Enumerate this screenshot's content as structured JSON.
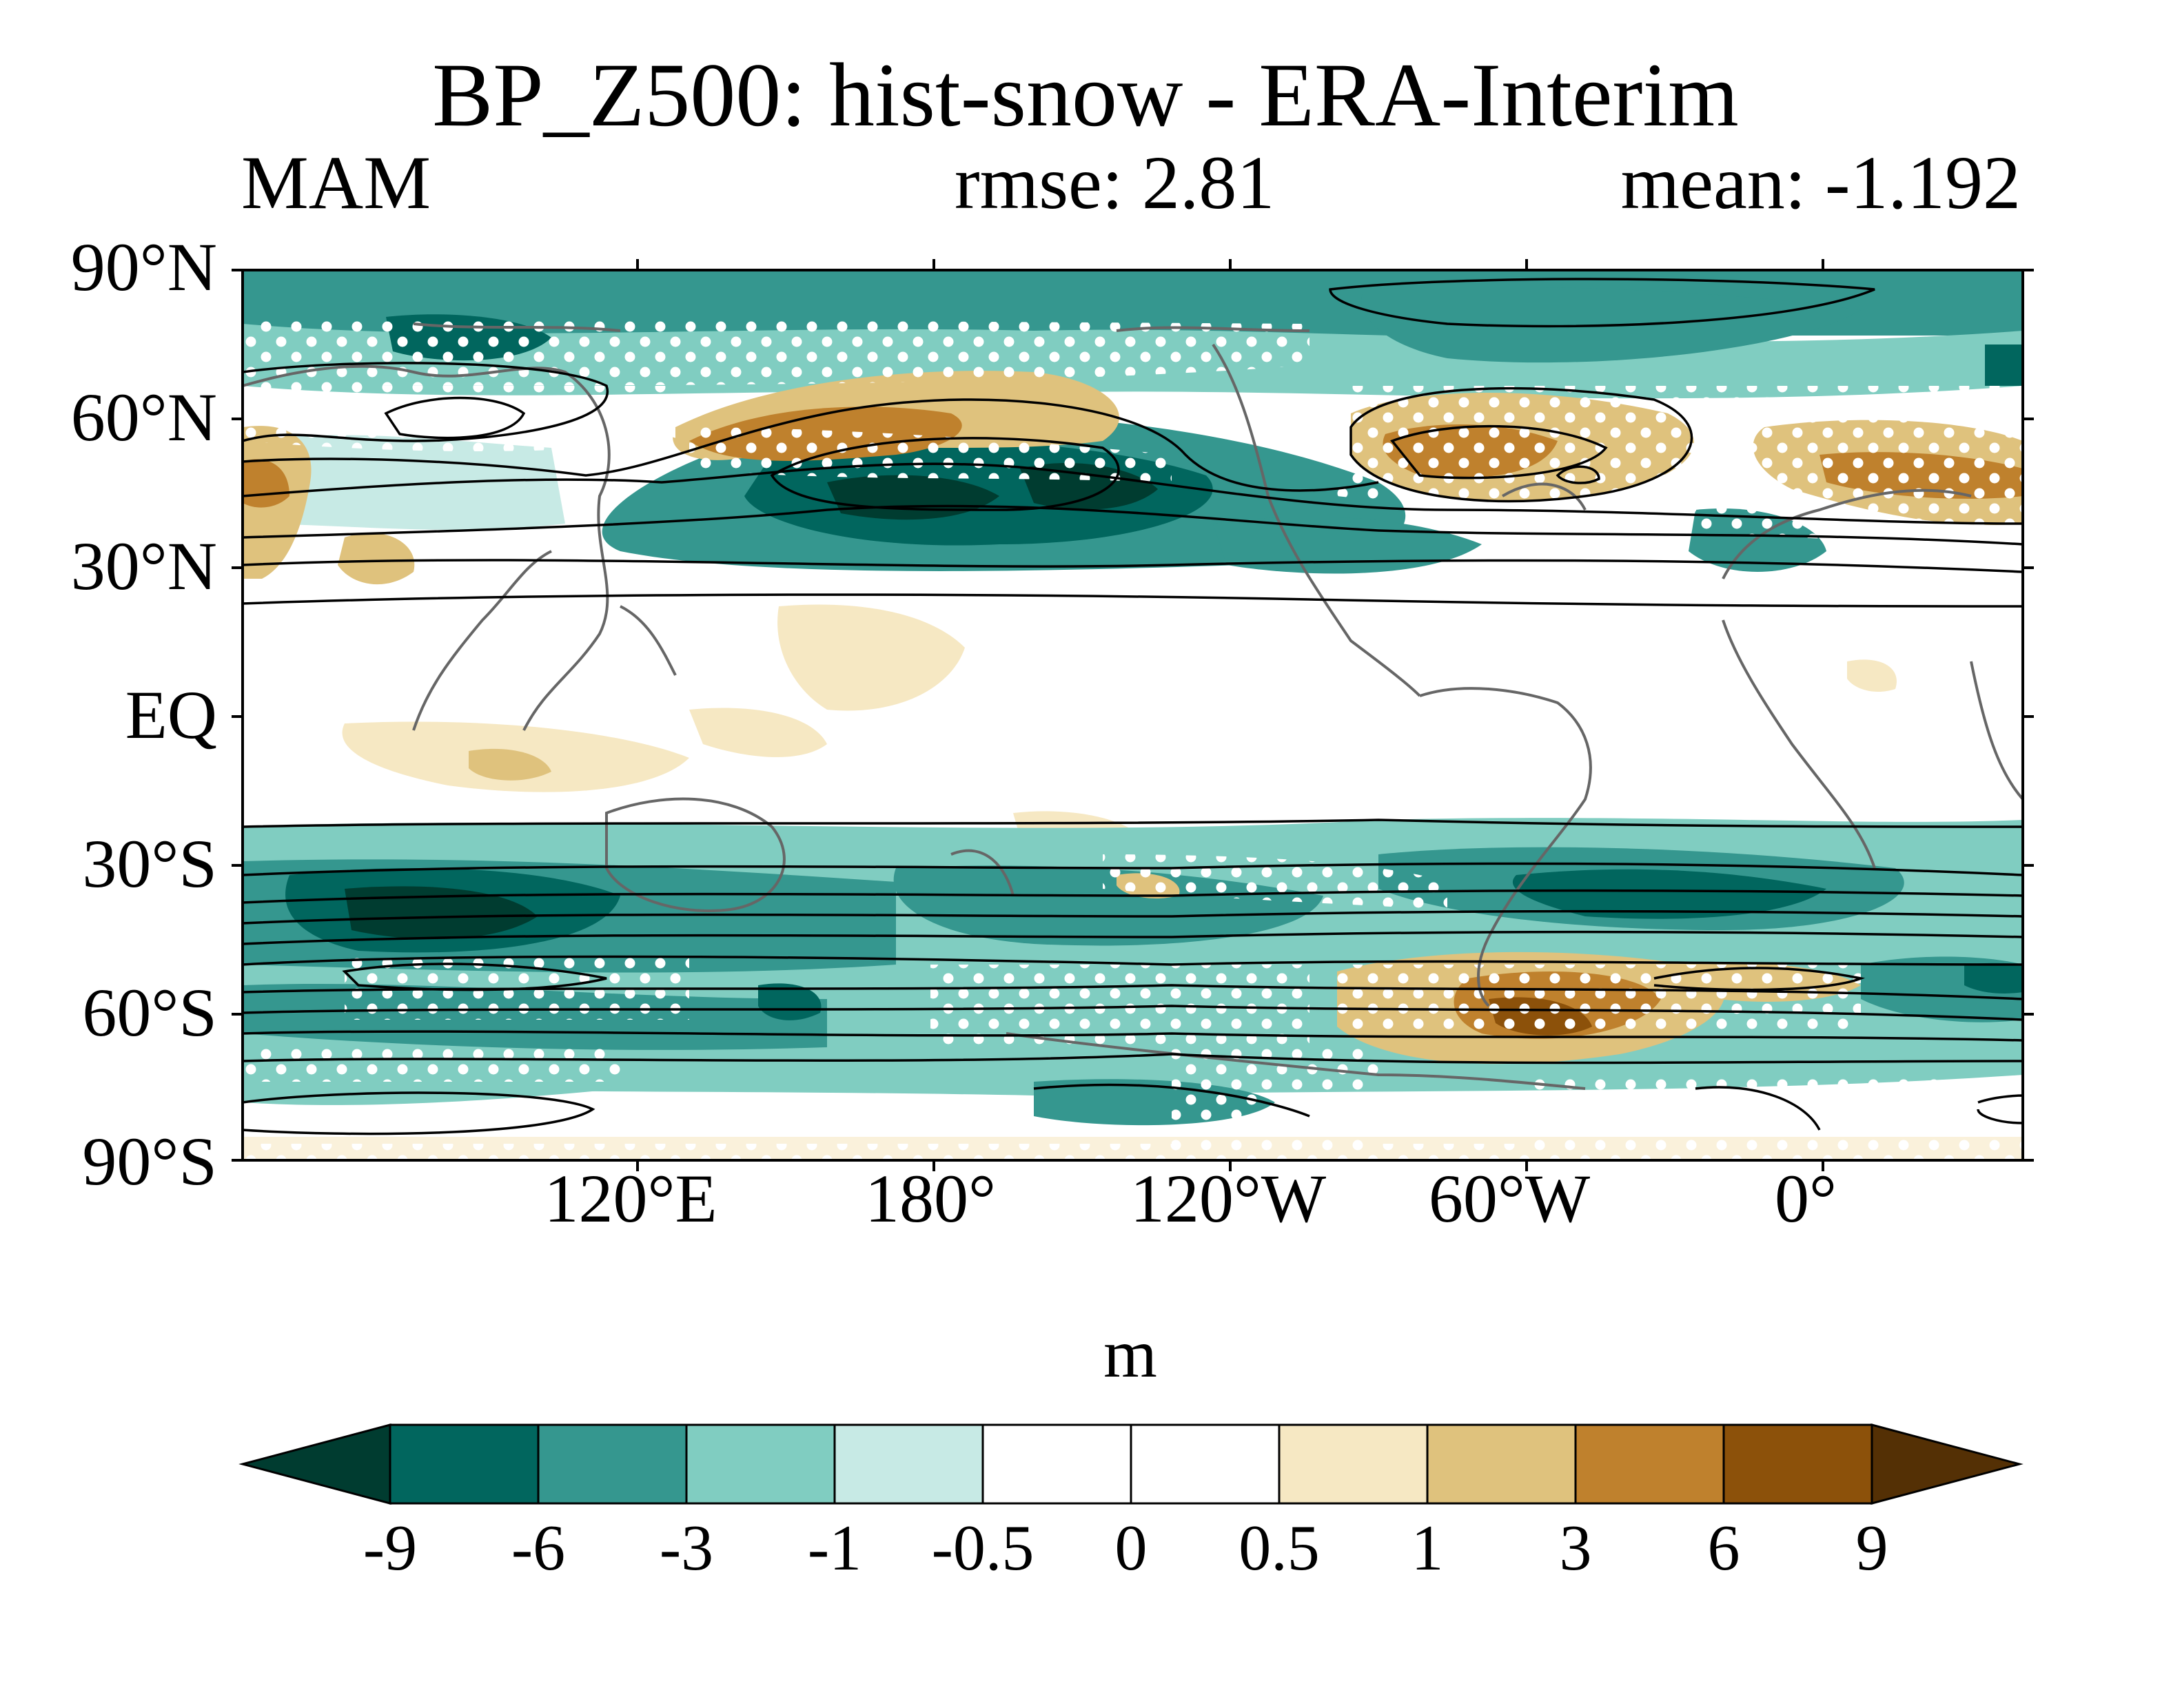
{
  "figure": {
    "title": "BP_Z500: hist-snow - ERA-Interim",
    "season": "MAM",
    "rmse_text": "rmse: 2.81",
    "mean_text": "mean: -1.192"
  },
  "axes": {
    "lat_labels": [
      "90°N",
      "60°N",
      "30°N",
      "EQ",
      "30°S",
      "60°S",
      "90°S"
    ],
    "lon_labels": [
      "120°E",
      "180°",
      "120°W",
      "60°W",
      "0°"
    ]
  },
  "colorbar": {
    "units": "m",
    "tick_labels": [
      "-9",
      "-6",
      "-3",
      "-1",
      "-0.5",
      "0",
      "0.5",
      "1",
      "3",
      "6",
      "9"
    ],
    "colors": [
      "#003c30",
      "#01665e",
      "#35978f",
      "#80cdc1",
      "#c7eae5",
      "#ffffff",
      "#ffffff",
      "#f6e8c3",
      "#dfc27d",
      "#bf812d",
      "#8c510a",
      "#543005"
    ]
  },
  "map": {
    "projection": "cylindrical equidistant",
    "lon_range": [
      40,
      400
    ],
    "lat_range": [
      -90,
      90
    ],
    "stippling": "white dots mark significant regions",
    "contours": "black lines show reference Z500 field",
    "coastline_color": "#666666"
  }
}
